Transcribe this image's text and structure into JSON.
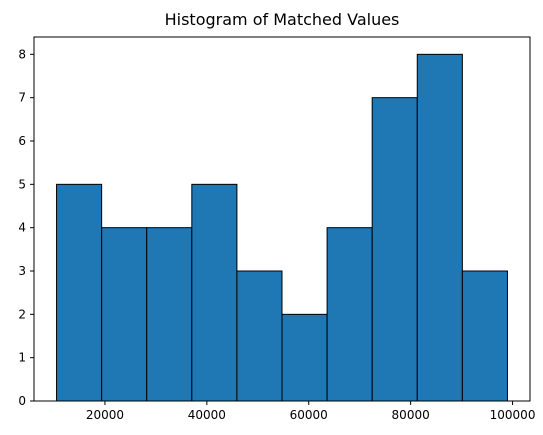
{
  "chart_data": {
    "type": "bar",
    "title": "Histogram of Matched Values",
    "xlabel": "",
    "ylabel": "",
    "bins": [
      {
        "start": 10500,
        "end": 19350,
        "count": 5
      },
      {
        "start": 19350,
        "end": 28200,
        "count": 4
      },
      {
        "start": 28200,
        "end": 37050,
        "count": 4
      },
      {
        "start": 37050,
        "end": 45900,
        "count": 5
      },
      {
        "start": 45900,
        "end": 54750,
        "count": 3
      },
      {
        "start": 54750,
        "end": 63600,
        "count": 2
      },
      {
        "start": 63600,
        "end": 72450,
        "count": 4
      },
      {
        "start": 72450,
        "end": 81300,
        "count": 7
      },
      {
        "start": 81300,
        "end": 90150,
        "count": 8
      },
      {
        "start": 90150,
        "end": 99000,
        "count": 3
      }
    ],
    "xlim": [
      6075,
      103425
    ],
    "ylim": [
      0,
      8.4
    ],
    "xticks": [
      20000,
      40000,
      60000,
      80000,
      100000
    ],
    "xtick_labels": [
      "20000",
      "40000",
      "60000",
      "80000",
      "100000"
    ],
    "yticks": [
      0,
      1,
      2,
      3,
      4,
      5,
      6,
      7,
      8
    ],
    "ytick_labels": [
      "0",
      "1",
      "2",
      "3",
      "4",
      "5",
      "6",
      "7",
      "8"
    ],
    "grid": false,
    "legend": "none",
    "colors": {
      "bar_fill": "#1f77b4",
      "bar_edge": "#000000",
      "axis": "#000000",
      "background": "#ffffff"
    }
  }
}
